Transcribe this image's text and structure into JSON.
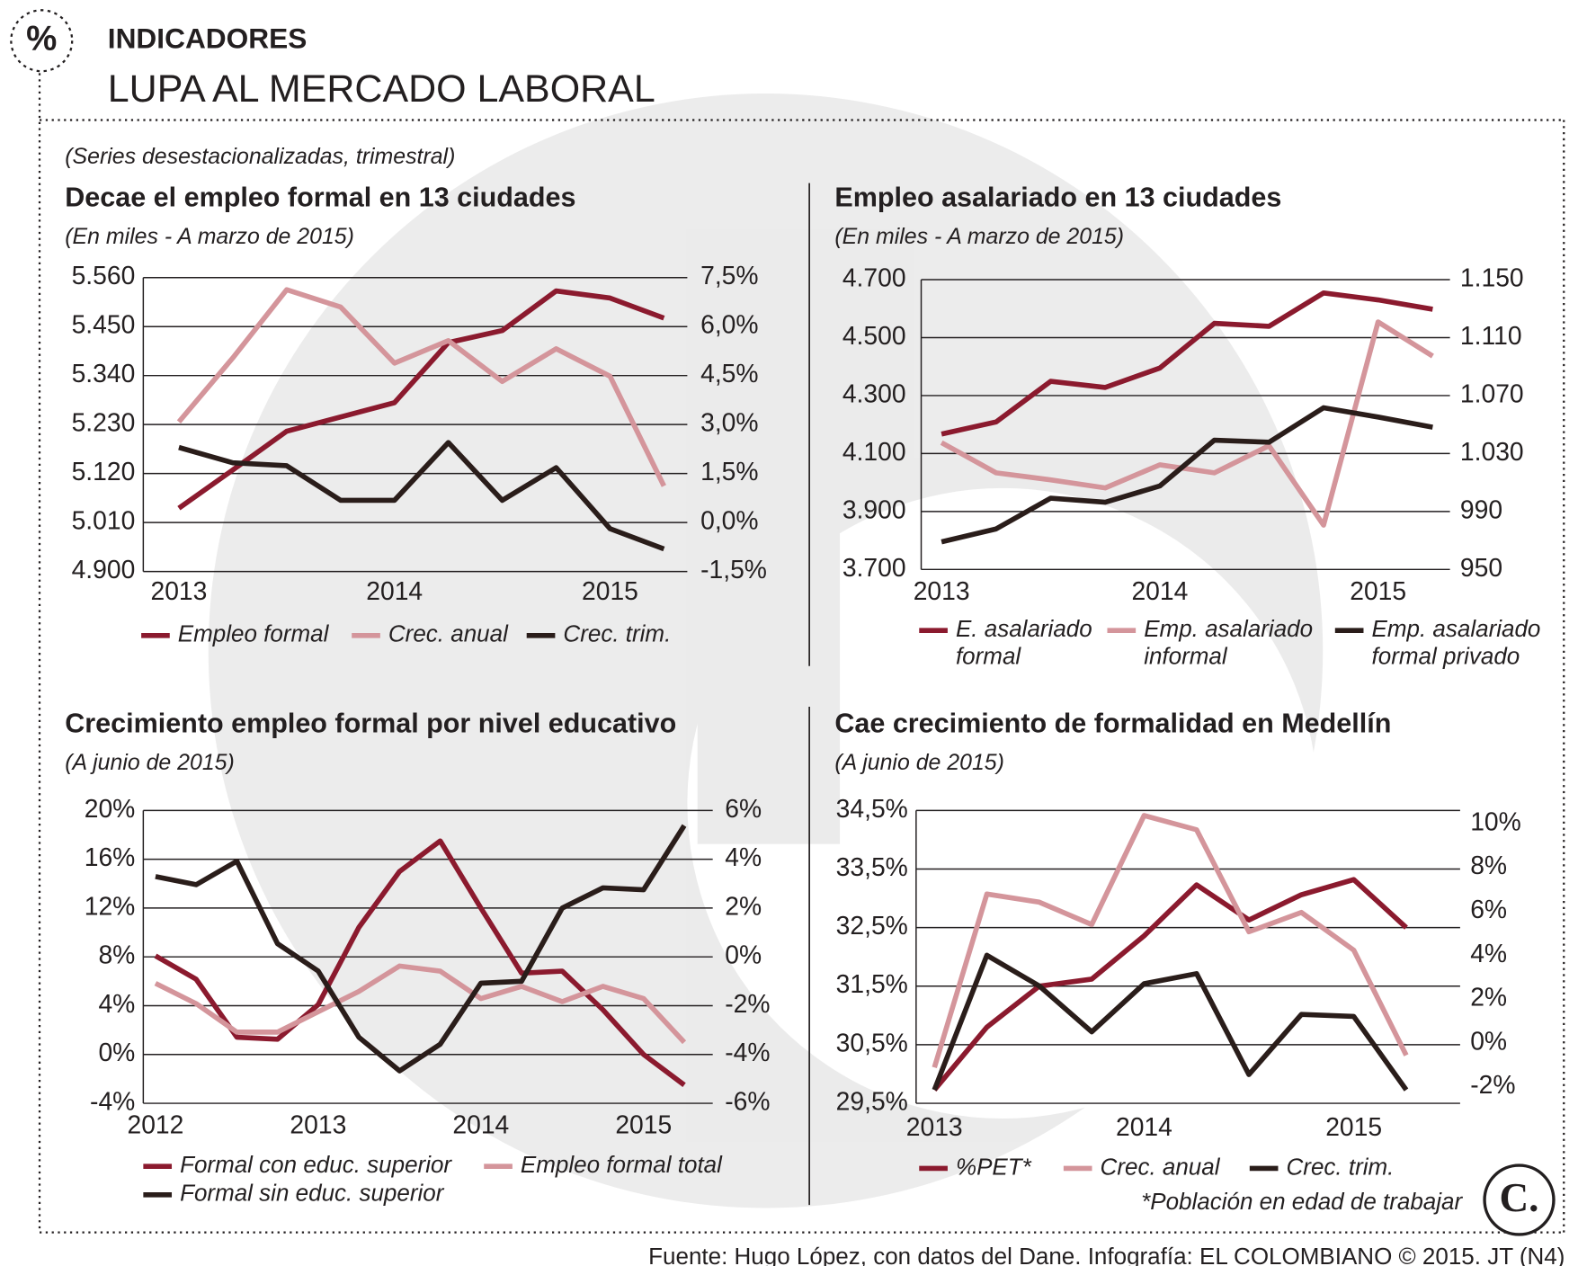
{
  "icon": "%",
  "header": {
    "label": "INDICADORES",
    "title": "LUPA AL MERCADO LABORAL",
    "note": "(Series desestacionalizadas, trimestral)"
  },
  "footnote": "*Población en edad de trabajar",
  "brand": "C.",
  "source": "Fuente: Hugo López, con datos del Dane. Infografía: EL COLOMBIANO © 2015. JT (N4)",
  "chart_data": [
    {
      "type": "line",
      "title": "Decae el empleo formal en 13 ciudades",
      "subtitle": "(En miles - A marzo de 2015)",
      "categories": [
        "2013",
        null,
        null,
        null,
        "2014",
        null,
        null,
        null,
        "2015",
        null
      ],
      "ylim": [
        4900,
        5560
      ],
      "yticks": [
        {
          "value": 4900,
          "label": "4.900"
        },
        {
          "value": 5010,
          "label": "5.010"
        },
        {
          "value": 5120,
          "label": "5.120"
        },
        {
          "value": 5230,
          "label": "5.230"
        },
        {
          "value": 5340,
          "label": "5.340"
        },
        {
          "value": 5450,
          "label": "5.450"
        },
        {
          "value": 5560,
          "label": "5.560"
        }
      ],
      "y2lim": [
        -1.5,
        7.5
      ],
      "y2ticks": [
        {
          "value": -1.5,
          "label": "-1,5%"
        },
        {
          "value": 0,
          "label": "0,0%"
        },
        {
          "value": 1.5,
          "label": "1,5%"
        },
        {
          "value": 3,
          "label": "3,0%"
        },
        {
          "value": 4.5,
          "label": "4,5%"
        },
        {
          "value": 6,
          "label": "6,0%"
        },
        {
          "value": 7.5,
          "label": "7,5%"
        }
      ],
      "grid": true,
      "series": [
        {
          "name": "Empleo formal",
          "color": "#8b1a2e",
          "values": [
            5042,
            5128,
            5215,
            5247,
            5279,
            5414,
            5441,
            5530,
            5514,
            5469
          ]
        },
        {
          "name": "Crec. anual",
          "color": "#d4959b",
          "axis": "y2",
          "values": [
            3.08,
            5.04,
            7.13,
            6.6,
            4.88,
            5.57,
            4.32,
            5.32,
            4.48,
            1.12
          ]
        },
        {
          "name": "Crec. trim.",
          "color": "#2a1d1a",
          "axis": "y2",
          "values": [
            2.3,
            1.83,
            1.74,
            0.68,
            0.68,
            2.45,
            0.68,
            1.68,
            -0.19,
            -0.81
          ]
        }
      ]
    },
    {
      "type": "line",
      "title": "Empleo asalariado en 13 ciudades",
      "subtitle": "(En miles - A marzo de 2015)",
      "categories": [
        "2013",
        null,
        null,
        null,
        "2014",
        null,
        null,
        null,
        "2015",
        null
      ],
      "ylim": [
        3700,
        4700
      ],
      "yticks": [
        {
          "value": 3700,
          "label": "3.700"
        },
        {
          "value": 3900,
          "label": "3.900"
        },
        {
          "value": 4100,
          "label": "4.100"
        },
        {
          "value": 4300,
          "label": "4.300"
        },
        {
          "value": 4500,
          "label": "4.500"
        },
        {
          "value": 4700,
          "label": "4.700"
        }
      ],
      "y2lim": [
        950,
        1150
      ],
      "y2ticks": [
        950,
        990,
        {
          "value": 1030,
          "label": "1.030"
        },
        {
          "value": 1070,
          "label": "1.070"
        },
        {
          "value": 1110,
          "label": "1.110"
        },
        {
          "value": 1150,
          "label": "1.150"
        }
      ],
      "grid": true,
      "series": [
        {
          "name": "E. asalariado formal",
          "color": "#8b1a2e",
          "values": [
            4167,
            4209,
            4349,
            4328,
            4395,
            4549,
            4539,
            4654,
            4630,
            4598
          ]
        },
        {
          "name": "Emp. asalariado informal",
          "color": "#d4959b",
          "axis": "y2",
          "values": [
            1037.5,
            1016.7,
            1011.8,
            1006.3,
            1022.2,
            1016.7,
            1035.4,
            980.6,
            1120.8,
            1097.2
          ]
        },
        {
          "name": "Emp. asalariado formal privado",
          "color": "#2a1d1a",
          "values": [
            3795,
            3840,
            3946,
            3932,
            3988,
            4146,
            4139,
            4258,
            4226,
            4191
          ]
        }
      ]
    },
    {
      "type": "line",
      "title": "Crecimiento empleo formal por nivel educativo",
      "subtitle": "(A junio de 2015)",
      "categories": [
        "2012",
        null,
        null,
        null,
        "2013",
        null,
        null,
        null,
        "2014",
        null,
        null,
        null,
        "2015",
        null
      ],
      "ylim": [
        -4,
        20
      ],
      "yticks": [
        {
          "value": -4,
          "label": "-4%"
        },
        {
          "value": 0,
          "label": "0%"
        },
        {
          "value": 4,
          "label": "4%"
        },
        {
          "value": 8,
          "label": "8%"
        },
        {
          "value": 12,
          "label": "12%"
        },
        {
          "value": 16,
          "label": "16%"
        },
        {
          "value": 20,
          "label": "20%"
        }
      ],
      "y2lim": [
        -6,
        6
      ],
      "y2ticks": [
        {
          "value": -6,
          "label": "-6%"
        },
        {
          "value": -4,
          "label": "-4%"
        },
        {
          "value": -2,
          "label": "-2%"
        },
        {
          "value": 0,
          "label": "0%"
        },
        {
          "value": 2,
          "label": "2%"
        },
        {
          "value": 4,
          "label": "4%"
        },
        {
          "value": 6,
          "label": "6%"
        }
      ],
      "grid": true,
      "series": [
        {
          "name": "Formal con educ. superior",
          "color": "#8b1a2e",
          "values": [
            8.08,
            6.17,
            1.42,
            1.25,
            4.08,
            10.42,
            15.0,
            17.5,
            12.0,
            6.67,
            6.83,
            3.67,
            0.0,
            -2.5
          ]
        },
        {
          "name": "Empleo formal total",
          "color": "#d4959b",
          "values": [
            5.83,
            4.17,
            1.83,
            1.83,
            3.5,
            5.17,
            7.25,
            6.83,
            4.58,
            5.58,
            4.33,
            5.58,
            4.58,
            1.0
          ]
        },
        {
          "name": "Formal sin educ. superior",
          "color": "#2a1d1a",
          "axis": "y2",
          "values": [
            3.29,
            2.96,
            3.92,
            0.54,
            -0.58,
            -3.29,
            -4.67,
            -3.58,
            -1.08,
            -1.0,
            2.0,
            2.83,
            2.75,
            5.38
          ]
        }
      ]
    },
    {
      "type": "line",
      "title": "Cae crecimiento de formalidad en Medellín",
      "subtitle": "(A junio de 2015)",
      "categories": [
        "2013",
        null,
        null,
        null,
        "2014",
        null,
        null,
        null,
        "2015",
        null
      ],
      "ylim": [
        29.5,
        34.5
      ],
      "yticks": [
        {
          "value": 29.5,
          "label": "29,5%"
        },
        {
          "value": 30.5,
          "label": "30,5%"
        },
        {
          "value": 31.5,
          "label": "31,5%"
        },
        {
          "value": 32.5,
          "label": "32,5%"
        },
        {
          "value": 33.5,
          "label": "33,5%"
        },
        {
          "value": 34.5,
          "label": "34,5%"
        }
      ],
      "y2lim": [
        -2.75,
        10.6
      ],
      "y2ticks": [
        {
          "value": -2,
          "label": "-2%"
        },
        {
          "value": 0,
          "label": "0%"
        },
        {
          "value": 2,
          "label": "2%"
        },
        {
          "value": 4,
          "label": "4%"
        },
        {
          "value": 6,
          "label": "6%"
        },
        {
          "value": 8,
          "label": "8%"
        },
        {
          "value": 10,
          "label": "10%"
        }
      ],
      "grid": true,
      "series": [
        {
          "name": "%PET*",
          "color": "#8b1a2e",
          "values": [
            29.73,
            30.8,
            31.5,
            31.62,
            32.36,
            33.23,
            32.63,
            33.06,
            33.32,
            32.5
          ]
        },
        {
          "name": "Crec. anual",
          "color": "#d4959b",
          "axis": "y2",
          "values": [
            -1.12,
            6.79,
            6.42,
            5.4,
            10.37,
            9.72,
            5.07,
            5.95,
            4.23,
            -0.56
          ]
        },
        {
          "name": "Crec. trim.",
          "color": "#2a1d1a",
          "axis": "y2",
          "values": [
            -2.14,
            4.0,
            2.6,
            0.51,
            2.7,
            3.16,
            -1.44,
            1.3,
            1.21,
            -2.14
          ]
        }
      ]
    }
  ]
}
